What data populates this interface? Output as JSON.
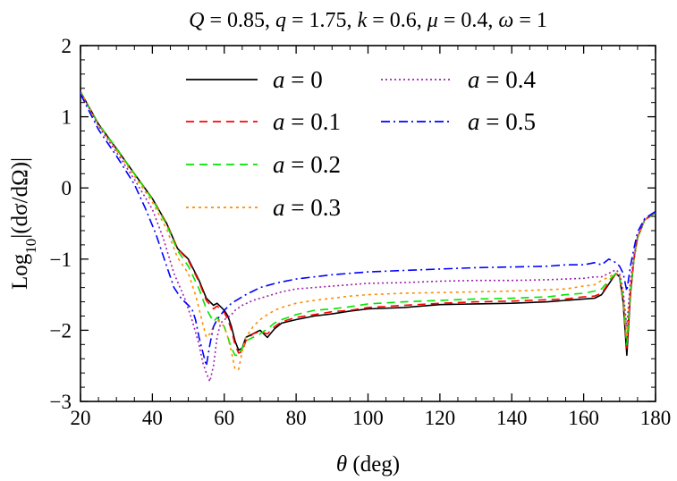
{
  "chart_data": {
    "type": "line",
    "title_parts": [
      {
        "t": "Q",
        "i": true
      },
      {
        "t": " = 0.85, ",
        "i": false
      },
      {
        "t": "q",
        "i": true
      },
      {
        "t": " = 1.75, ",
        "i": false
      },
      {
        "t": "k",
        "i": true
      },
      {
        "t": " = 0.6, ",
        "i": false
      },
      {
        "t": "μ",
        "i": true
      },
      {
        "t": " = 0.4, ",
        "i": false
      },
      {
        "t": "ω",
        "i": true
      },
      {
        "t": " = 1",
        "i": false
      }
    ],
    "xlabel_parts": [
      {
        "t": "θ",
        "i": true
      },
      {
        "t": " (deg)",
        "i": false
      }
    ],
    "ylabel_parts": [
      {
        "t": "Log",
        "sub": false
      },
      {
        "t": "10",
        "sub": true
      },
      {
        "t": "|(dσ/dΩ)|",
        "sub": false
      }
    ],
    "xlim": [
      20,
      180
    ],
    "ylim": [
      -3,
      2
    ],
    "xticks": [
      "20",
      "40",
      "60",
      "80",
      "100",
      "120",
      "140",
      "160",
      "180"
    ],
    "yticks": [
      "−3",
      "−2",
      "−1",
      "0",
      "1",
      "2"
    ],
    "grid": false,
    "legend_placement": "top-left",
    "series": [
      {
        "name": "a = 0",
        "legend_prefix": "a",
        "legend_value": " = 0",
        "color": "#000000",
        "dash": "",
        "x": [
          20,
          25,
          30,
          35,
          40,
          44,
          47,
          50,
          53,
          55,
          57,
          58,
          60,
          61,
          62,
          63,
          64,
          65,
          66,
          68,
          70,
          72,
          74,
          76,
          80,
          85,
          90,
          95,
          100,
          110,
          120,
          130,
          140,
          150,
          155,
          160,
          163,
          165,
          167,
          169,
          170,
          171,
          172,
          173,
          174,
          175,
          177,
          180
        ],
        "y": [
          1.35,
          0.9,
          0.55,
          0.2,
          -0.15,
          -0.5,
          -0.85,
          -1.0,
          -1.3,
          -1.55,
          -1.65,
          -1.62,
          -1.72,
          -1.8,
          -1.95,
          -2.15,
          -2.28,
          -2.25,
          -2.1,
          -2.05,
          -2.0,
          -2.1,
          -1.98,
          -1.9,
          -1.85,
          -1.8,
          -1.77,
          -1.73,
          -1.7,
          -1.68,
          -1.64,
          -1.63,
          -1.62,
          -1.6,
          -1.58,
          -1.56,
          -1.55,
          -1.5,
          -1.35,
          -1.2,
          -1.25,
          -1.6,
          -2.35,
          -1.5,
          -1.0,
          -0.7,
          -0.45,
          -0.35
        ]
      },
      {
        "name": "a = 0.1",
        "legend_prefix": "a",
        "legend_value": " = 0.1",
        "color": "#ff0000",
        "dash": "9,6",
        "x": [
          20,
          25,
          30,
          35,
          40,
          44,
          47,
          50,
          53,
          55,
          57,
          58,
          60,
          61,
          62,
          63,
          64,
          65,
          66,
          68,
          70,
          72,
          74,
          76,
          80,
          85,
          90,
          95,
          100,
          110,
          120,
          130,
          140,
          150,
          155,
          160,
          163,
          165,
          167,
          169,
          170,
          171,
          172,
          173,
          174,
          175,
          177,
          180
        ],
        "y": [
          1.35,
          0.9,
          0.55,
          0.2,
          -0.15,
          -0.5,
          -0.85,
          -1.02,
          -1.32,
          -1.58,
          -1.7,
          -1.66,
          -1.75,
          -1.85,
          -2.0,
          -2.2,
          -2.32,
          -2.3,
          -2.15,
          -2.05,
          -2.02,
          -2.05,
          -1.95,
          -1.88,
          -1.82,
          -1.78,
          -1.74,
          -1.72,
          -1.68,
          -1.65,
          -1.62,
          -1.6,
          -1.59,
          -1.57,
          -1.56,
          -1.53,
          -1.52,
          -1.48,
          -1.33,
          -1.2,
          -1.26,
          -1.6,
          -2.25,
          -1.45,
          -1.0,
          -0.7,
          -0.45,
          -0.35
        ]
      },
      {
        "name": "a = 0.2",
        "legend_prefix": "a",
        "legend_value": " = 0.2",
        "color": "#00e600",
        "dash": "9,6",
        "x": [
          20,
          25,
          30,
          35,
          40,
          44,
          47,
          50,
          53,
          55,
          57,
          58,
          60,
          61,
          62,
          63,
          64,
          65,
          66,
          68,
          70,
          72,
          74,
          76,
          80,
          85,
          90,
          95,
          100,
          110,
          120,
          130,
          140,
          150,
          155,
          160,
          163,
          165,
          167,
          169,
          170,
          171,
          172,
          173,
          174,
          175,
          177,
          180
        ],
        "y": [
          1.35,
          0.9,
          0.56,
          0.2,
          -0.16,
          -0.52,
          -0.88,
          -1.1,
          -1.42,
          -1.7,
          -1.88,
          -1.82,
          -1.95,
          -2.1,
          -2.25,
          -2.35,
          -2.35,
          -2.25,
          -2.15,
          -2.1,
          -2.05,
          -1.98,
          -1.9,
          -1.85,
          -1.78,
          -1.72,
          -1.7,
          -1.67,
          -1.63,
          -1.6,
          -1.58,
          -1.56,
          -1.55,
          -1.53,
          -1.5,
          -1.48,
          -1.45,
          -1.42,
          -1.3,
          -1.2,
          -1.25,
          -1.55,
          -2.2,
          -1.45,
          -1.0,
          -0.7,
          -0.45,
          -0.35
        ]
      },
      {
        "name": "a = 0.3",
        "legend_prefix": "a",
        "legend_value": " = 0.3",
        "color": "#ff8c00",
        "dash": "3,4",
        "x": [
          20,
          25,
          30,
          35,
          40,
          44,
          47,
          50,
          52,
          54,
          55,
          56,
          57,
          58,
          59,
          60,
          61,
          62,
          63,
          64,
          65,
          66,
          68,
          70,
          72,
          74,
          76,
          80,
          85,
          90,
          95,
          100,
          110,
          120,
          130,
          140,
          150,
          155,
          160,
          163,
          165,
          167,
          169,
          170,
          171,
          172,
          173,
          174,
          175,
          177,
          180
        ],
        "y": [
          1.35,
          0.88,
          0.53,
          0.17,
          -0.2,
          -0.58,
          -0.98,
          -1.2,
          -1.5,
          -1.9,
          -2.1,
          -2.05,
          -1.95,
          -1.85,
          -1.9,
          -1.95,
          -2.1,
          -2.3,
          -2.55,
          -2.55,
          -2.3,
          -2.1,
          -1.95,
          -1.85,
          -1.78,
          -1.72,
          -1.68,
          -1.62,
          -1.58,
          -1.55,
          -1.52,
          -1.5,
          -1.48,
          -1.47,
          -1.46,
          -1.45,
          -1.43,
          -1.42,
          -1.38,
          -1.36,
          -1.3,
          -1.25,
          -1.2,
          -1.22,
          -1.5,
          -2.1,
          -1.4,
          -1.0,
          -0.7,
          -0.45,
          -0.35
        ]
      },
      {
        "name": "a = 0.4",
        "legend_prefix": "a",
        "legend_value": " = 0.4",
        "color": "#a020b0",
        "dash": "2,3",
        "x": [
          20,
          25,
          30,
          35,
          40,
          43,
          46,
          49,
          51,
          53,
          54,
          55,
          56,
          57,
          58,
          59,
          60,
          61,
          62,
          63,
          65,
          68,
          72,
          76,
          80,
          85,
          90,
          95,
          100,
          110,
          120,
          130,
          140,
          150,
          155,
          160,
          163,
          165,
          167,
          169,
          170,
          171,
          172,
          173,
          174,
          175,
          177,
          180
        ],
        "y": [
          1.35,
          0.87,
          0.5,
          0.12,
          -0.3,
          -0.7,
          -1.2,
          -1.55,
          -1.85,
          -2.2,
          -2.45,
          -2.6,
          -2.72,
          -2.5,
          -2.1,
          -1.9,
          -1.85,
          -1.82,
          -1.78,
          -1.72,
          -1.65,
          -1.58,
          -1.52,
          -1.46,
          -1.42,
          -1.4,
          -1.38,
          -1.36,
          -1.34,
          -1.33,
          -1.31,
          -1.3,
          -1.3,
          -1.29,
          -1.28,
          -1.27,
          -1.25,
          -1.25,
          -1.2,
          -1.15,
          -1.2,
          -1.45,
          -1.95,
          -1.3,
          -0.95,
          -0.68,
          -0.44,
          -0.35
        ]
      },
      {
        "name": "a = 0.5",
        "legend_prefix": "a",
        "legend_value": " = 0.5",
        "color": "#0000ff",
        "dash": "10,4,2,4",
        "x": [
          20,
          25,
          30,
          35,
          38,
          41,
          44,
          46,
          48,
          50,
          51,
          52,
          53,
          54,
          55,
          56,
          57,
          58,
          60,
          62,
          64,
          66,
          68,
          70,
          75,
          80,
          85,
          90,
          95,
          100,
          110,
          120,
          130,
          140,
          150,
          155,
          160,
          163,
          165,
          167,
          169,
          170,
          171,
          172,
          173,
          174,
          175,
          177,
          180
        ],
        "y": [
          1.32,
          0.82,
          0.45,
          0.05,
          -0.28,
          -0.65,
          -1.1,
          -1.4,
          -1.55,
          -1.65,
          -1.7,
          -1.85,
          -2.1,
          -2.3,
          -2.5,
          -2.2,
          -1.95,
          -1.85,
          -1.72,
          -1.62,
          -1.56,
          -1.5,
          -1.45,
          -1.4,
          -1.33,
          -1.28,
          -1.25,
          -1.22,
          -1.2,
          -1.18,
          -1.16,
          -1.14,
          -1.12,
          -1.11,
          -1.1,
          -1.08,
          -1.08,
          -1.05,
          -1.08,
          -1.0,
          -1.05,
          -1.1,
          -1.2,
          -1.45,
          -1.1,
          -0.85,
          -0.62,
          -0.43,
          -0.33
        ]
      }
    ]
  }
}
